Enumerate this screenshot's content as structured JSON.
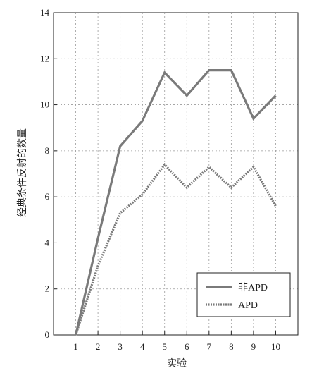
{
  "chart_data": {
    "type": "line",
    "xlabel": "实验",
    "ylabel": "经典条件反射的数量",
    "x": [
      1,
      2,
      3,
      4,
      5,
      6,
      7,
      8,
      9,
      10
    ],
    "xlim": [
      0,
      11
    ],
    "ylim": [
      0,
      14
    ],
    "yticks": [
      0,
      2,
      4,
      6,
      8,
      10,
      12,
      14
    ],
    "xticks": [
      1,
      2,
      3,
      4,
      5,
      6,
      7,
      8,
      9,
      10
    ],
    "grid": true,
    "legend_position": "bottom-right",
    "series": [
      {
        "name": "非APD",
        "style": "solid",
        "color": "#7a7a7a",
        "values": [
          0,
          4.2,
          8.2,
          9.3,
          11.4,
          10.4,
          11.5,
          11.5,
          9.4,
          10.4
        ]
      },
      {
        "name": "APD",
        "style": "dotted",
        "color": "#7a7a7a",
        "values": [
          0,
          3.0,
          5.3,
          6.1,
          7.4,
          6.4,
          7.3,
          6.4,
          7.3,
          5.6
        ]
      }
    ]
  }
}
